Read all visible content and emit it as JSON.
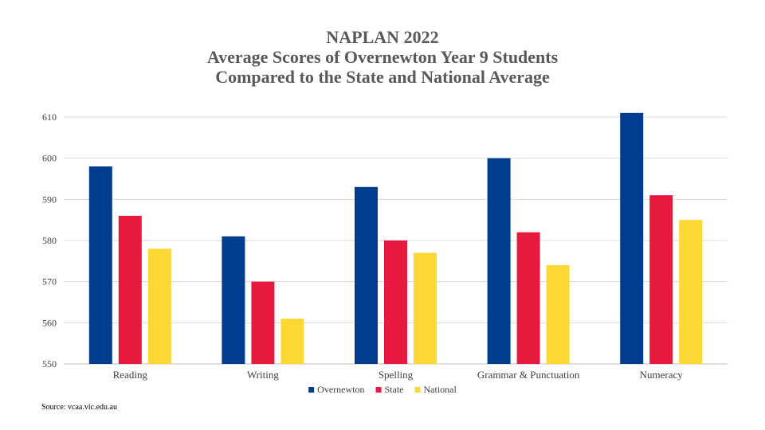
{
  "chart_data": {
    "type": "bar",
    "title_lines": [
      "NAPLAN 2022",
      "Average Scores of Overnewton Year 9 Students",
      "Compared to the State and National Average"
    ],
    "categories": [
      "Reading",
      "Writing",
      "Spelling",
      "Grammar & Punctuation",
      "Numeracy"
    ],
    "series": [
      {
        "name": "Overnewton",
        "color": "#003d8f",
        "values": [
          598,
          581,
          593,
          600,
          611
        ]
      },
      {
        "name": "State",
        "color": "#e8193f",
        "values": [
          586,
          570,
          580,
          582,
          591
        ]
      },
      {
        "name": "National",
        "color": "#fdd835",
        "values": [
          578,
          561,
          577,
          574,
          585
        ]
      }
    ],
    "ylim": [
      550,
      610
    ],
    "yticks": [
      550,
      560,
      570,
      580,
      590,
      600,
      610
    ],
    "grid": true,
    "legend_position": "bottom",
    "xlabel": "",
    "ylabel": ""
  },
  "source": "Source: vcaa.vic.edu.au"
}
